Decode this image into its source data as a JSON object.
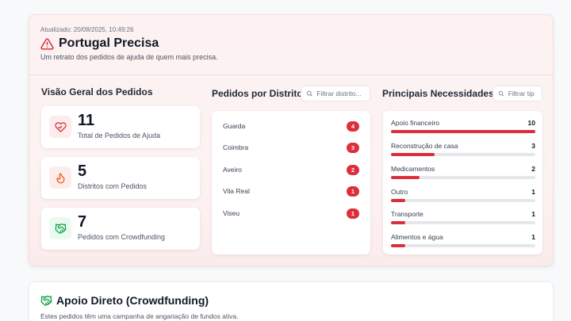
{
  "header": {
    "updated": "Atualizado: 20/08/2025, 10:49:26",
    "title": "Portugal Precisa",
    "subtitle": "Um retrato dos pedidos de ajuda de quem mais precisa.",
    "warning_icon": "alert-triangle-icon"
  },
  "overview": {
    "title": "Visão Geral dos Pedidos",
    "stats": [
      {
        "value": "11",
        "label": "Total de Pedidos de Ajuda",
        "icon": "heart-hand-icon"
      },
      {
        "value": "5",
        "label": "Distritos com Pedidos",
        "icon": "flame-icon"
      },
      {
        "value": "7",
        "label": "Pedidos com Crowdfunding",
        "icon": "handshake-icon"
      }
    ]
  },
  "districts": {
    "title": "Pedidos por Distrito",
    "filter_placeholder": "Filtrar distrito...",
    "items": [
      {
        "name": "Guarda",
        "count": "4"
      },
      {
        "name": "Coimbra",
        "count": "3"
      },
      {
        "name": "Aveiro",
        "count": "2"
      },
      {
        "name": "Vila Real",
        "count": "1"
      },
      {
        "name": "Viseu",
        "count": "1"
      }
    ]
  },
  "needs": {
    "title": "Principais Necessidades",
    "filter_placeholder": "Filtrar tip",
    "max": 10,
    "items": [
      {
        "name": "Apoio financeiro",
        "value": "10"
      },
      {
        "name": "Reconstrução de casa",
        "value": "3"
      },
      {
        "name": "Medicamentos",
        "value": "2"
      },
      {
        "name": "Outro",
        "value": "1"
      },
      {
        "name": "Transporte",
        "value": "1"
      },
      {
        "name": "Alimentos e água",
        "value": "1"
      }
    ]
  },
  "crowdfunding": {
    "title": "Apoio Direto (Crowdfunding)",
    "subtitle": "Estes pedidos têm uma campanha de angariação de fundos ativa."
  },
  "colors": {
    "accent": "#dc2f3c",
    "icon_bg": "#fdecec",
    "green": "#16a34a"
  }
}
